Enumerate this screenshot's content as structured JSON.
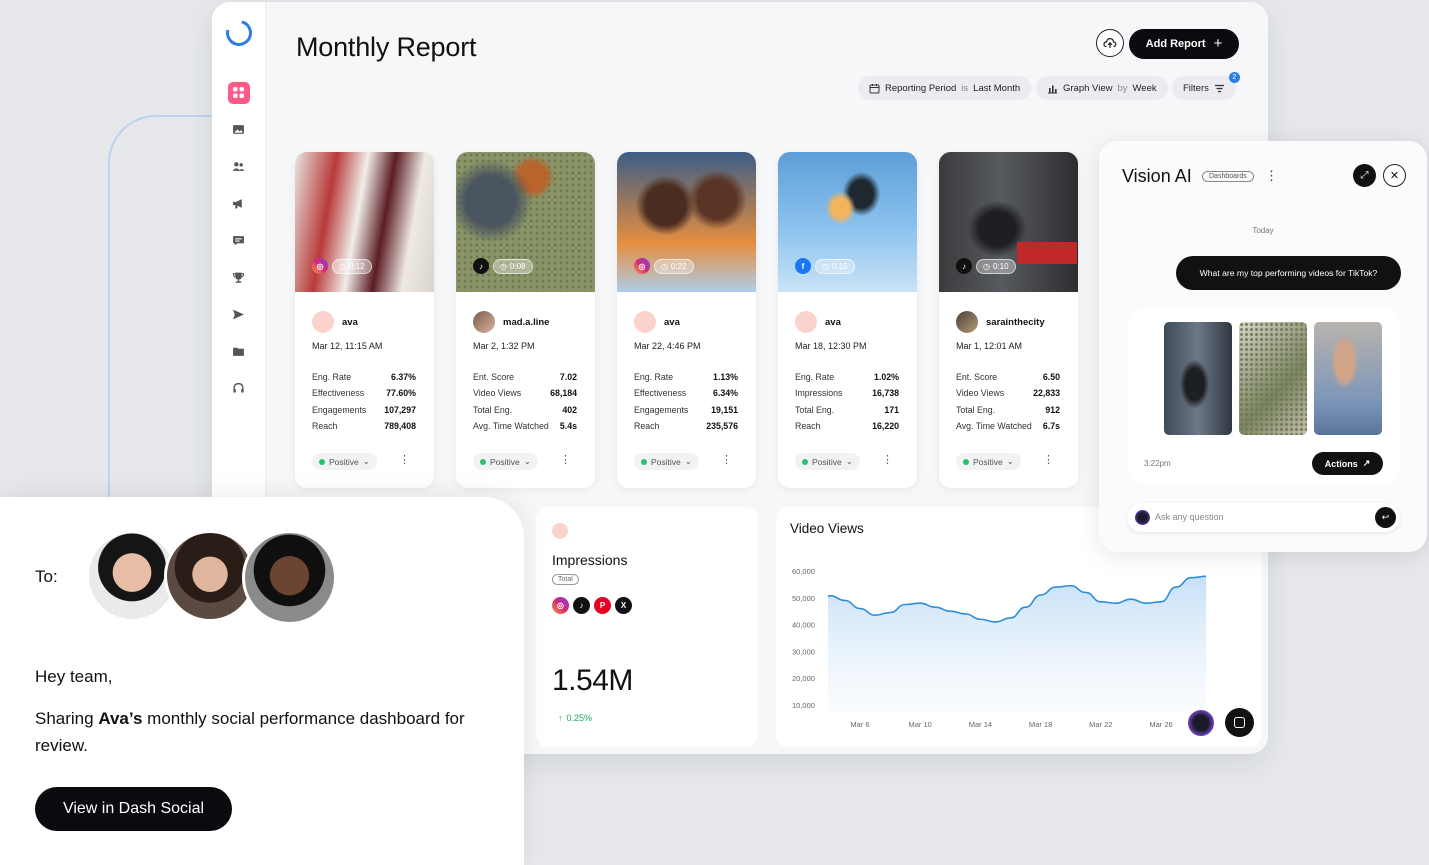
{
  "header": {
    "title": "Monthly Report",
    "add_report_label": "Add Report",
    "reporting_period_label": "Reporting Period",
    "reporting_period_is": "is",
    "reporting_period_value": "Last Month",
    "graph_view_label": "Graph View",
    "graph_view_by": "by",
    "graph_view_value": "Week",
    "filters_label": "Filters",
    "filters_count": "2"
  },
  "sidebar": {
    "icons": [
      "dashboard-icon",
      "image-icon",
      "users-icon",
      "megaphone-icon",
      "chat-icon",
      "trophy-icon",
      "send-icon",
      "folder-icon",
      "headset-icon"
    ]
  },
  "posts": [
    {
      "network": "instagram",
      "duration": "0:12",
      "author": "ava",
      "date": "Mar 12, 11:15 AM",
      "metrics": [
        [
          "Eng. Rate",
          "6.37%"
        ],
        [
          "Effectiveness",
          "77.60%"
        ],
        [
          "Engagements",
          "107,297"
        ],
        [
          "Reach",
          "789,408"
        ]
      ],
      "sentiment": "Positive"
    },
    {
      "network": "tiktok",
      "duration": "0:08",
      "author": "mad.a.line",
      "date": "Mar 2, 1:32 PM",
      "metrics": [
        [
          "Ent. Score",
          "7.02"
        ],
        [
          "Video Views",
          "68,184"
        ],
        [
          "Total Eng.",
          "402"
        ],
        [
          "Avg. Time Watched",
          "5.4s"
        ]
      ],
      "sentiment": "Positive"
    },
    {
      "network": "instagram",
      "duration": "0:22",
      "author": "ava",
      "date": "Mar 22, 4:46 PM",
      "metrics": [
        [
          "Eng. Rate",
          "1.13%"
        ],
        [
          "Effectiveness",
          "6.34%"
        ],
        [
          "Engagements",
          "19,151"
        ],
        [
          "Reach",
          "235,576"
        ]
      ],
      "sentiment": "Positive"
    },
    {
      "network": "facebook",
      "duration": "0:15",
      "author": "ava",
      "date": "Mar 18, 12:30 PM",
      "metrics": [
        [
          "Eng. Rate",
          "1.02%"
        ],
        [
          "Impressions",
          "16,738"
        ],
        [
          "Total Eng.",
          "171"
        ],
        [
          "Reach",
          "16,220"
        ]
      ],
      "sentiment": "Positive"
    },
    {
      "network": "tiktok",
      "duration": "0:10",
      "author": "sarainthecity",
      "date": "Mar 1, 12:01 AM",
      "metrics": [
        [
          "Ent. Score",
          "6.50"
        ],
        [
          "Video Views",
          "22,833"
        ],
        [
          "Total Eng.",
          "912"
        ],
        [
          "Avg. Time Watched",
          "6.7s"
        ]
      ],
      "sentiment": "Positive"
    }
  ],
  "impressions": {
    "title": "Impressions",
    "badge": "Total",
    "value": "1.54M",
    "change": "0.25%",
    "networks": [
      "instagram",
      "tiktok",
      "pinterest",
      "x"
    ]
  },
  "chart_data": {
    "type": "area",
    "title": "Video Views",
    "y_ticks": [
      "60,000",
      "50,000",
      "40,000",
      "30,000",
      "20,000",
      "10,000"
    ],
    "ylim": [
      10000,
      60000
    ],
    "x_ticks": [
      "Mar 6",
      "Mar 10",
      "Mar 14",
      "Mar 18",
      "Mar 22",
      "Mar 26"
    ],
    "x": [
      3,
      4,
      5,
      6,
      7,
      8,
      9,
      10,
      11,
      12,
      13,
      14,
      15,
      16,
      17,
      18,
      19,
      20,
      21,
      22,
      23,
      24,
      25,
      26,
      27,
      28,
      29
    ],
    "values": [
      50500,
      50800,
      49000,
      46000,
      43500,
      44500,
      47500,
      48000,
      46500,
      45000,
      44000,
      42000,
      41000,
      42500,
      46500,
      51000,
      54000,
      54500,
      52000,
      48500,
      48000,
      49500,
      48000,
      48500,
      54000,
      57500,
      58000
    ]
  },
  "vision": {
    "title": "Vision AI",
    "badge": "Dashboards",
    "today": "Today",
    "message": "What are my top performing videos for TikTok?",
    "time": "3:22pm",
    "actions_label": "Actions",
    "ask_placeholder": "Ask any question"
  },
  "email": {
    "to_label": "To:",
    "greeting": "Hey team,",
    "body_pre": "Sharing ",
    "body_bold": "Ava’s",
    "body_post": " monthly social performance dashboard for review.",
    "cta": "View in Dash Social"
  },
  "colors": {
    "accent": "#ff5a87",
    "chart_line": "#2e8ed8",
    "primary_dark": "#0b0b0f",
    "instagram": "#d62976",
    "tiktok": "#111111",
    "facebook": "#1877f2",
    "pinterest": "#e60023",
    "positive": "#27c26c"
  }
}
